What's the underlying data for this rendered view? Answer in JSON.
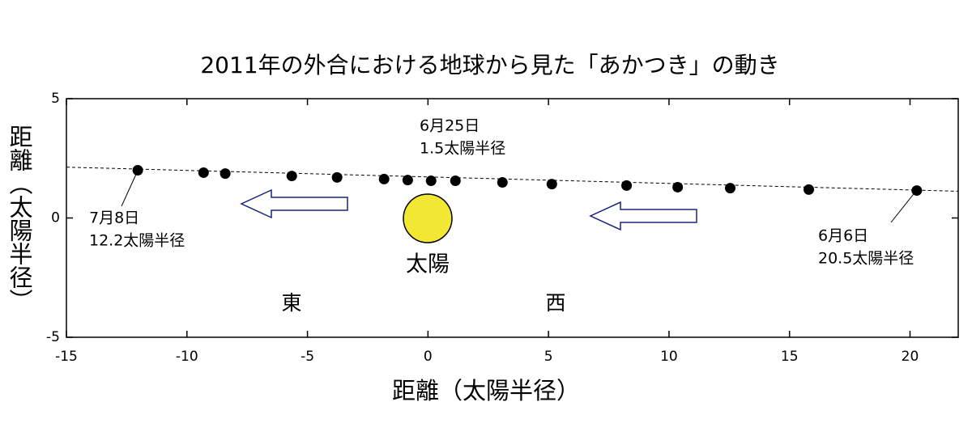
{
  "chart_data": {
    "type": "scatter",
    "title": "2011年の外合における地球から見た「あかつき」の動き",
    "x_label": "距離（太陽半径）",
    "y_label": "距離（太陽半径）",
    "x": [
      -12.04,
      -9.31,
      -8.41,
      -5.65,
      -3.77,
      -1.82,
      -0.84,
      0.13,
      1.14,
      3.09,
      5.14,
      8.24,
      10.36,
      12.54,
      15.8,
      20.28
    ],
    "y": [
      2.0,
      1.9,
      1.86,
      1.76,
      1.7,
      1.63,
      1.59,
      1.56,
      1.56,
      1.49,
      1.42,
      1.36,
      1.29,
      1.25,
      1.19,
      1.15
    ],
    "color": "#000000",
    "trend_line": {
      "x": [
        -15,
        22
      ],
      "y": [
        2.13,
        1.12
      ]
    },
    "xlim": [
      -15,
      22
    ],
    "xticks": [
      -15,
      -10,
      -5,
      0,
      5,
      10,
      15,
      20
    ],
    "ylim": [
      -5,
      5
    ],
    "yticks": [
      -5,
      0,
      5
    ],
    "annotations": {
      "jul8": [
        "7月8日",
        "12.2太陽半径"
      ],
      "jun25": [
        "6月25日",
        "1.5太陽半径"
      ],
      "jun6": [
        "6月6日",
        "20.5太陽半径"
      ],
      "sun": "太陽",
      "east": "東",
      "west": "西"
    }
  }
}
